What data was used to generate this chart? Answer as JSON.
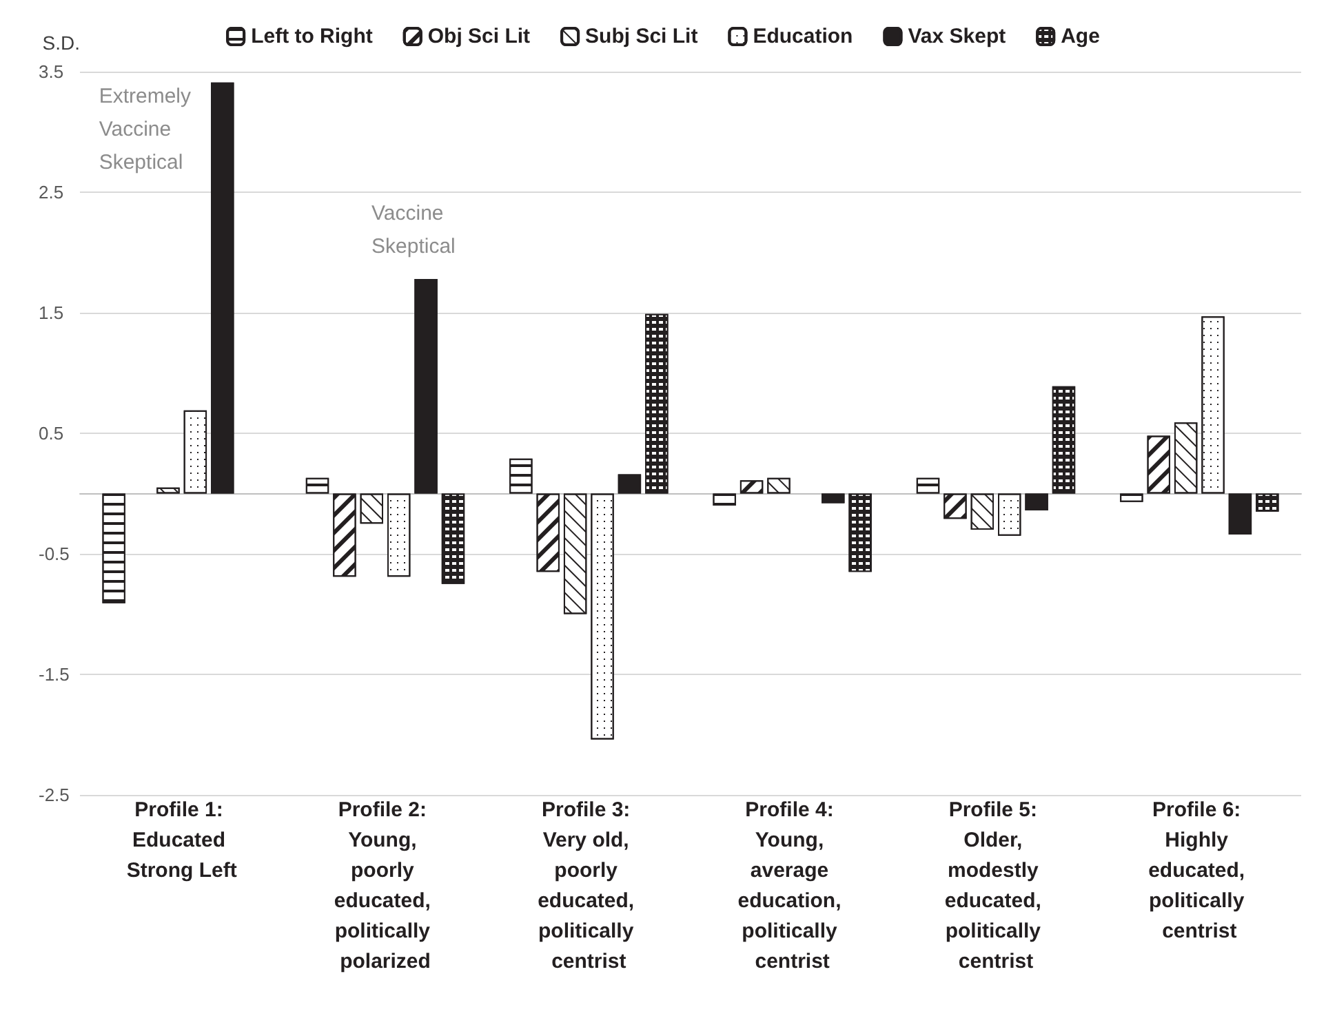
{
  "chart_data": {
    "type": "bar",
    "ylabel": "S.D.",
    "categories": [
      "Profile 1: Educated Strong Left",
      "Profile 2: Young, poorly educated, politically polarized",
      "Profile 3: Very old, poorly educated, politically centrist",
      "Profile 4: Young, average education, politically centrist",
      "Profile 5: Older, modestly educated, politically centrist",
      "Profile 6: Highly educated, politically centrist"
    ],
    "series": [
      {
        "name": "Left to Right",
        "color": "#ffffff",
        "values": [
          -0.91,
          0.13,
          0.29,
          -0.1,
          0.13,
          -0.07
        ]
      },
      {
        "name": "Obj Sci Lit",
        "color": "#ffffff",
        "values": [
          null,
          -0.69,
          -0.65,
          0.11,
          -0.21,
          0.48
        ]
      },
      {
        "name": "Subj Sci Lit",
        "color": "#ffffff",
        "values": [
          0.05,
          -0.25,
          -1.0,
          0.13,
          -0.3,
          0.59
        ]
      },
      {
        "name": "Education",
        "color": "#ffffff",
        "values": [
          0.69,
          -0.69,
          -2.04,
          null,
          -0.35,
          1.47
        ]
      },
      {
        "name": "Vax Skept",
        "color": "#231f20",
        "values": [
          3.41,
          1.78,
          0.16,
          -0.08,
          -0.14,
          -0.34
        ]
      },
      {
        "name": "Age",
        "color": "#231f20",
        "values": [
          null,
          -0.75,
          1.49,
          -0.65,
          0.89,
          -0.15
        ]
      }
    ],
    "ylim": [
      -2.5,
      3.5
    ],
    "yticks": [
      3.5,
      2.5,
      1.5,
      0.5,
      -0.5,
      -1.5,
      -2.5
    ],
    "grid": "y",
    "legend": "top",
    "annotations": [
      "Extremely Vaccine Skeptical",
      "Vaccine Skeptical"
    ]
  }
}
